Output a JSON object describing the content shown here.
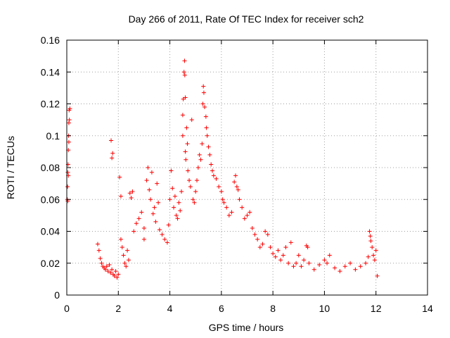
{
  "chart_data": {
    "type": "scatter",
    "title": "Day 266 of 2011, Rate Of TEC Index for receiver sch2",
    "xlabel": "GPS time / hours",
    "ylabel": "ROTI / TECUs",
    "xlim": [
      0,
      14
    ],
    "ylim": [
      0,
      0.16
    ],
    "xticks": [
      "0",
      "2",
      "4",
      "6",
      "8",
      "10",
      "12",
      "14"
    ],
    "yticks": [
      "0",
      "0.02",
      "0.04",
      "0.06",
      "0.08",
      "0.1",
      "0.12",
      "0.14",
      "0.16"
    ],
    "grid": true,
    "marker": "+",
    "color": "#ff0000",
    "series": [
      {
        "points": [
          [
            0.02,
            0.06
          ],
          [
            0.03,
            0.068
          ],
          [
            0.04,
            0.077
          ],
          [
            0.05,
            0.082
          ],
          [
            0.06,
            0.091
          ],
          [
            0.07,
            0.1
          ],
          [
            0.08,
            0.108
          ],
          [
            0.09,
            0.116
          ],
          [
            0.1,
            0.11
          ],
          [
            0.12,
            0.117
          ],
          [
            0.04,
            0.059
          ],
          [
            0.06,
            0.075
          ],
          [
            0.08,
            0.096
          ],
          [
            1.2,
            0.032
          ],
          [
            1.25,
            0.028
          ],
          [
            1.3,
            0.023
          ],
          [
            1.35,
            0.02
          ],
          [
            1.4,
            0.018
          ],
          [
            1.45,
            0.017
          ],
          [
            1.5,
            0.016
          ],
          [
            1.55,
            0.018
          ],
          [
            1.6,
            0.015
          ],
          [
            1.65,
            0.019
          ],
          [
            1.7,
            0.014
          ],
          [
            1.75,
            0.016
          ],
          [
            1.8,
            0.013
          ],
          [
            1.85,
            0.012
          ],
          [
            1.9,
            0.015
          ],
          [
            1.95,
            0.011
          ],
          [
            2.0,
            0.013
          ],
          [
            1.72,
            0.097
          ],
          [
            1.75,
            0.086
          ],
          [
            1.78,
            0.089
          ],
          [
            2.05,
            0.074
          ],
          [
            2.1,
            0.062
          ],
          [
            2.1,
            0.035
          ],
          [
            2.15,
            0.03
          ],
          [
            2.2,
            0.025
          ],
          [
            2.25,
            0.02
          ],
          [
            2.3,
            0.018
          ],
          [
            2.35,
            0.028
          ],
          [
            2.4,
            0.022
          ],
          [
            2.45,
            0.064
          ],
          [
            2.5,
            0.061
          ],
          [
            2.55,
            0.065
          ],
          [
            2.6,
            0.04
          ],
          [
            2.7,
            0.045
          ],
          [
            2.8,
            0.048
          ],
          [
            2.9,
            0.052
          ],
          [
            3.0,
            0.035
          ],
          [
            3.0,
            0.042
          ],
          [
            3.1,
            0.072
          ],
          [
            3.15,
            0.08
          ],
          [
            3.2,
            0.066
          ],
          [
            3.25,
            0.06
          ],
          [
            3.3,
            0.077
          ],
          [
            3.35,
            0.051
          ],
          [
            3.4,
            0.055
          ],
          [
            3.45,
            0.046
          ],
          [
            3.5,
            0.07
          ],
          [
            3.55,
            0.058
          ],
          [
            3.6,
            0.041
          ],
          [
            3.7,
            0.038
          ],
          [
            3.8,
            0.035
          ],
          [
            3.9,
            0.033
          ],
          [
            3.95,
            0.044
          ],
          [
            4.0,
            0.06
          ],
          [
            4.05,
            0.078
          ],
          [
            4.1,
            0.067
          ],
          [
            4.15,
            0.055
          ],
          [
            4.2,
            0.062
          ],
          [
            4.25,
            0.05
          ],
          [
            4.3,
            0.048
          ],
          [
            4.35,
            0.058
          ],
          [
            4.4,
            0.053
          ],
          [
            4.45,
            0.065
          ],
          [
            4.5,
            0.1
          ],
          [
            4.5,
            0.113
          ],
          [
            4.52,
            0.123
          ],
          [
            4.55,
            0.14
          ],
          [
            4.57,
            0.147
          ],
          [
            4.58,
            0.138
          ],
          [
            4.6,
            0.124
          ],
          [
            4.6,
            0.09
          ],
          [
            4.62,
            0.085
          ],
          [
            4.65,
            0.105
          ],
          [
            4.68,
            0.095
          ],
          [
            4.7,
            0.078
          ],
          [
            4.75,
            0.072
          ],
          [
            4.8,
            0.068
          ],
          [
            4.85,
            0.11
          ],
          [
            4.9,
            0.06
          ],
          [
            4.95,
            0.058
          ],
          [
            5.0,
            0.065
          ],
          [
            5.05,
            0.072
          ],
          [
            5.1,
            0.08
          ],
          [
            5.15,
            0.088
          ],
          [
            5.2,
            0.085
          ],
          [
            5.25,
            0.095
          ],
          [
            5.28,
            0.12
          ],
          [
            5.3,
            0.131
          ],
          [
            5.32,
            0.127
          ],
          [
            5.35,
            0.118
          ],
          [
            5.4,
            0.112
          ],
          [
            5.42,
            0.105
          ],
          [
            5.45,
            0.1
          ],
          [
            5.5,
            0.093
          ],
          [
            5.55,
            0.088
          ],
          [
            5.6,
            0.082
          ],
          [
            5.65,
            0.078
          ],
          [
            5.7,
            0.075
          ],
          [
            5.8,
            0.073
          ],
          [
            5.9,
            0.068
          ],
          [
            6.0,
            0.065
          ],
          [
            6.05,
            0.06
          ],
          [
            6.1,
            0.058
          ],
          [
            6.2,
            0.055
          ],
          [
            6.3,
            0.05
          ],
          [
            6.4,
            0.052
          ],
          [
            6.5,
            0.071
          ],
          [
            6.55,
            0.075
          ],
          [
            6.6,
            0.068
          ],
          [
            6.65,
            0.066
          ],
          [
            6.7,
            0.06
          ],
          [
            6.8,
            0.055
          ],
          [
            6.9,
            0.048
          ],
          [
            7.0,
            0.05
          ],
          [
            7.1,
            0.052
          ],
          [
            7.2,
            0.042
          ],
          [
            7.3,
            0.038
          ],
          [
            7.4,
            0.035
          ],
          [
            7.5,
            0.03
          ],
          [
            7.6,
            0.032
          ],
          [
            7.7,
            0.04
          ],
          [
            7.8,
            0.038
          ],
          [
            7.9,
            0.03
          ],
          [
            8.0,
            0.026
          ],
          [
            8.1,
            0.024
          ],
          [
            8.2,
            0.028
          ],
          [
            8.3,
            0.022
          ],
          [
            8.4,
            0.025
          ],
          [
            8.5,
            0.03
          ],
          [
            8.6,
            0.02
          ],
          [
            8.7,
            0.033
          ],
          [
            8.8,
            0.018
          ],
          [
            8.9,
            0.02
          ],
          [
            9.0,
            0.025
          ],
          [
            9.1,
            0.018
          ],
          [
            9.2,
            0.022
          ],
          [
            9.3,
            0.031
          ],
          [
            9.35,
            0.03
          ],
          [
            9.4,
            0.02
          ],
          [
            9.6,
            0.016
          ],
          [
            9.8,
            0.019
          ],
          [
            10.0,
            0.022
          ],
          [
            10.1,
            0.02
          ],
          [
            10.2,
            0.025
          ],
          [
            10.4,
            0.017
          ],
          [
            10.6,
            0.015
          ],
          [
            10.8,
            0.018
          ],
          [
            11.0,
            0.02
          ],
          [
            11.2,
            0.016
          ],
          [
            11.4,
            0.018
          ],
          [
            11.6,
            0.02
          ],
          [
            11.7,
            0.024
          ],
          [
            11.75,
            0.04
          ],
          [
            11.78,
            0.037
          ],
          [
            11.8,
            0.034
          ],
          [
            11.85,
            0.03
          ],
          [
            11.9,
            0.025
          ],
          [
            11.95,
            0.022
          ],
          [
            12.0,
            0.028
          ],
          [
            12.05,
            0.012
          ]
        ]
      }
    ]
  }
}
